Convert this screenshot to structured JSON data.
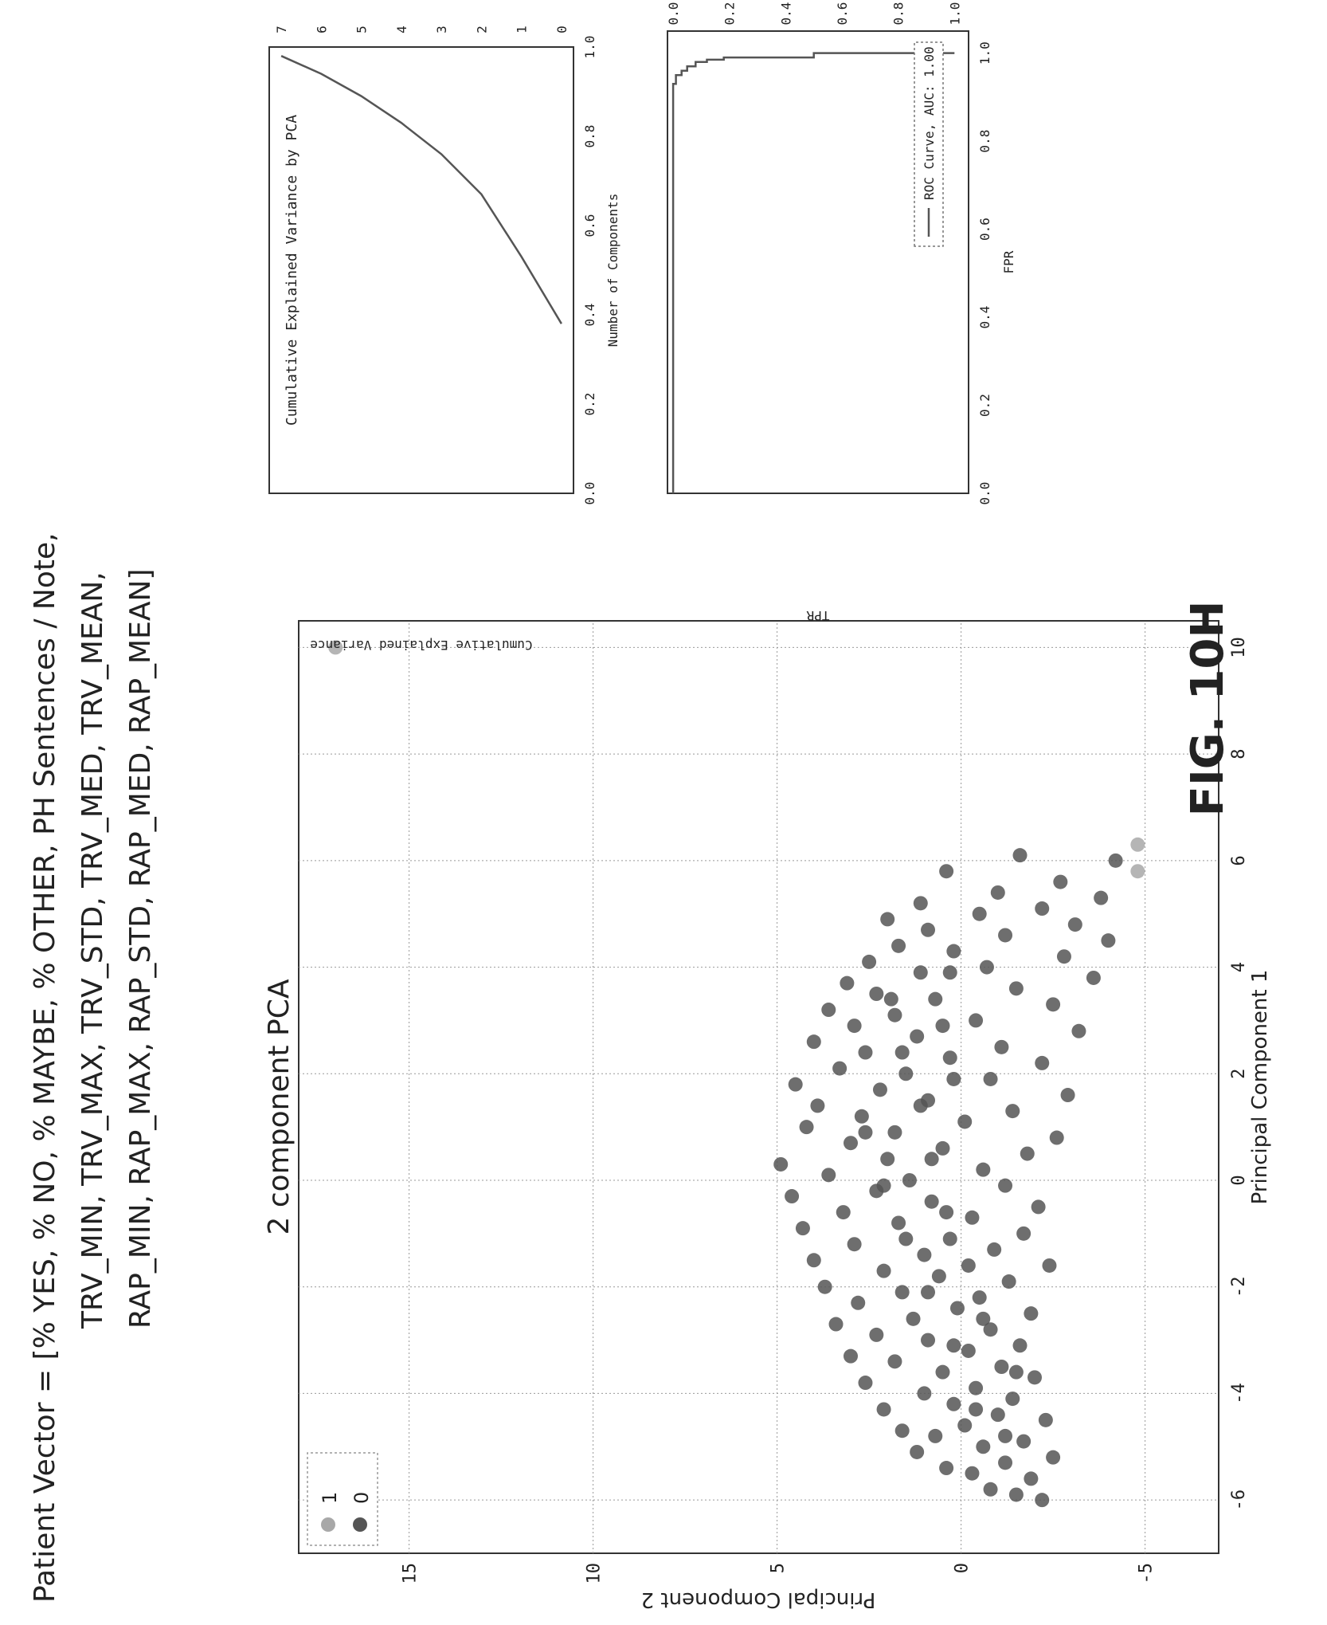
{
  "header": {
    "lines": [
      "Patient Vector = [% YES, % NO, % MAYBE, % OTHER, PH Sentences / Note,",
      "TRV_MIN, TRV_MAX, TRV_STD, TRV_MED, TRV_MEAN,",
      "RAP_MIN, RAP_MAX, RAP_STD, RAP_MED, RAP_MEAN]"
    ]
  },
  "figure_label": "FIG. 10H",
  "colors": {
    "class0": "#555555",
    "class1": "#a8a8a8",
    "line": "#555555",
    "grid": "#999999"
  },
  "chart_data": [
    {
      "type": "scatter",
      "title": "2 component PCA",
      "xlabel": "Principal Component 1",
      "ylabel": "Principal Component 2",
      "xlim": [
        -7,
        10.5
      ],
      "ylim": [
        -7,
        18
      ],
      "xticks": [
        -6,
        -4,
        -2,
        0,
        2,
        4,
        6,
        8,
        10
      ],
      "yticks": [
        -5,
        0,
        5,
        10,
        15
      ],
      "xtick_labels": [
        "-6",
        "-4",
        "-2",
        "0",
        "2",
        "4",
        "6",
        "8",
        "10"
      ],
      "ytick_labels": [
        "-5",
        "0",
        "5",
        "10",
        "15"
      ],
      "grid": true,
      "legend_position": "upper-left",
      "series": [
        {
          "name": "1",
          "color": "#a8a8a8",
          "points": [
            [
              10,
              17
            ],
            [
              6.3,
              -4.8
            ],
            [
              5.8,
              -4.8
            ]
          ]
        },
        {
          "name": "0",
          "color": "#555555",
          "points": [
            [
              -6,
              -2.2
            ],
            [
              -5.9,
              -1.5
            ],
            [
              -5.8,
              -0.8
            ],
            [
              -5.6,
              -1.9
            ],
            [
              -5.5,
              -0.3
            ],
            [
              -5.4,
              0.4
            ],
            [
              -5.3,
              -1.2
            ],
            [
              -5.2,
              -2.5
            ],
            [
              -5.1,
              1.2
            ],
            [
              -5,
              -0.6
            ],
            [
              -4.9,
              -1.7
            ],
            [
              -4.8,
              0.7
            ],
            [
              -4.7,
              1.6
            ],
            [
              -4.6,
              -0.1
            ],
            [
              -4.5,
              -2.3
            ],
            [
              -4.4,
              -1
            ],
            [
              -4.3,
              2.1
            ],
            [
              -4.2,
              0.2
            ],
            [
              -4.1,
              -1.4
            ],
            [
              -4,
              1
            ],
            [
              -3.9,
              -0.4
            ],
            [
              -3.8,
              2.6
            ],
            [
              -3.7,
              -2
            ],
            [
              -3.6,
              0.5
            ],
            [
              -3.5,
              -1.1
            ],
            [
              -3.4,
              1.8
            ],
            [
              -3.3,
              3
            ],
            [
              -3.2,
              -0.2
            ],
            [
              -3.1,
              -1.6
            ],
            [
              -3,
              0.9
            ],
            [
              -2.9,
              2.3
            ],
            [
              -2.8,
              -0.8
            ],
            [
              -2.7,
              3.4
            ],
            [
              -2.6,
              1.3
            ],
            [
              -2.5,
              -1.9
            ],
            [
              -2.4,
              0.1
            ],
            [
              -2.3,
              2.8
            ],
            [
              -2.2,
              -0.5
            ],
            [
              -2.1,
              1.6
            ],
            [
              -2,
              3.7
            ],
            [
              -1.9,
              -1.3
            ],
            [
              -1.8,
              0.6
            ],
            [
              -1.7,
              2.1
            ],
            [
              -1.6,
              -2.4
            ],
            [
              -1.5,
              4
            ],
            [
              -1.4,
              1
            ],
            [
              -1.3,
              -0.9
            ],
            [
              -1.2,
              2.9
            ],
            [
              -1.1,
              0.3
            ],
            [
              -1,
              -1.7
            ],
            [
              -0.9,
              4.3
            ],
            [
              -0.8,
              1.7
            ],
            [
              -0.7,
              -0.3
            ],
            [
              -0.6,
              3.2
            ],
            [
              -0.5,
              -2.1
            ],
            [
              -0.4,
              0.8
            ],
            [
              -0.3,
              4.6
            ],
            [
              -0.2,
              2.3
            ],
            [
              -0.1,
              -1.2
            ],
            [
              0,
              1.4
            ],
            [
              0.1,
              3.6
            ],
            [
              0.2,
              -0.6
            ],
            [
              0.3,
              4.9
            ],
            [
              0.4,
              2
            ],
            [
              0.5,
              -1.8
            ],
            [
              0.6,
              0.5
            ],
            [
              0.7,
              3
            ],
            [
              0.8,
              -2.6
            ],
            [
              0.9,
              1.8
            ],
            [
              1,
              4.2
            ],
            [
              1.1,
              -0.1
            ],
            [
              1.2,
              2.7
            ],
            [
              1.3,
              -1.4
            ],
            [
              1.4,
              3.9
            ],
            [
              1.5,
              0.9
            ],
            [
              1.6,
              -2.9
            ],
            [
              1.7,
              2.2
            ],
            [
              1.8,
              4.5
            ],
            [
              1.9,
              -0.8
            ],
            [
              2,
              1.5
            ],
            [
              2.1,
              3.3
            ],
            [
              2.2,
              -2.2
            ],
            [
              2.3,
              0.3
            ],
            [
              2.4,
              2.6
            ],
            [
              2.5,
              -1.1
            ],
            [
              2.6,
              4
            ],
            [
              2.7,
              1.2
            ],
            [
              2.8,
              -3.2
            ],
            [
              2.9,
              2.9
            ],
            [
              3,
              -0.4
            ],
            [
              3.1,
              1.8
            ],
            [
              3.2,
              3.6
            ],
            [
              3.3,
              -2.5
            ],
            [
              3.4,
              0.7
            ],
            [
              3.5,
              2.3
            ],
            [
              3.6,
              -1.5
            ],
            [
              3.7,
              3.1
            ],
            [
              3.8,
              -3.6
            ],
            [
              3.9,
              1.1
            ],
            [
              4,
              -0.7
            ],
            [
              4.1,
              2.5
            ],
            [
              4.2,
              -2.8
            ],
            [
              4.3,
              0.2
            ],
            [
              4.4,
              1.7
            ],
            [
              4.5,
              -4
            ],
            [
              4.6,
              -1.2
            ],
            [
              4.7,
              0.9
            ],
            [
              4.8,
              -3.1
            ],
            [
              4.9,
              2
            ],
            [
              5,
              -0.5
            ],
            [
              5.1,
              -2.2
            ],
            [
              5.2,
              1.1
            ],
            [
              5.3,
              -3.8
            ],
            [
              5.4,
              -1
            ],
            [
              5.6,
              -2.7
            ],
            [
              5.8,
              0.4
            ],
            [
              6,
              -4.2
            ],
            [
              6.1,
              -1.6
            ],
            [
              -4.8,
              -1.2
            ],
            [
              -4.3,
              -0.4
            ],
            [
              -3.6,
              -1.5
            ],
            [
              -3.1,
              0.2
            ],
            [
              -2.6,
              -0.6
            ],
            [
              -2.1,
              0.9
            ],
            [
              -1.6,
              -0.2
            ],
            [
              -1.1,
              1.5
            ],
            [
              -0.6,
              0.4
            ],
            [
              -0.1,
              2.1
            ],
            [
              0.4,
              0.8
            ],
            [
              0.9,
              2.6
            ],
            [
              1.4,
              1.1
            ],
            [
              1.9,
              0.2
            ],
            [
              2.4,
              1.6
            ],
            [
              2.9,
              0.5
            ],
            [
              3.4,
              1.9
            ],
            [
              3.9,
              0.3
            ]
          ]
        }
      ]
    },
    {
      "type": "line",
      "title": "Cumulative Explained Variance by PCA",
      "xlabel": "Number of Components",
      "ylabel": "Cumulative Explained Variance",
      "xlim": [
        -0.3,
        7.3
      ],
      "ylim": [
        0,
        1.0
      ],
      "xticks": [
        0,
        1,
        2,
        3,
        4,
        5,
        6,
        7
      ],
      "yticks": [
        0,
        0.2,
        0.4,
        0.6,
        0.8,
        1.0
      ],
      "xtick_labels": [
        "0",
        "1",
        "2",
        "3",
        "4",
        "5",
        "6",
        "7"
      ],
      "ytick_labels": [
        "0.0",
        "0.2",
        "0.4",
        "0.6",
        "0.8",
        "1.0"
      ],
      "grid": false,
      "series": [
        {
          "x": [
            0,
            1,
            2,
            3,
            4,
            5,
            6,
            7
          ],
          "y": [
            0.38,
            0.53,
            0.67,
            0.76,
            0.83,
            0.89,
            0.94,
            0.98
          ]
        }
      ]
    },
    {
      "type": "line",
      "xlabel": "FPR",
      "ylabel": "TPR",
      "xlim": [
        -0.02,
        1.05
      ],
      "ylim": [
        0,
        1.05
      ],
      "xticks": [
        0,
        0.2,
        0.4,
        0.6,
        0.8,
        1.0
      ],
      "yticks": [
        0,
        0.2,
        0.4,
        0.6,
        0.8,
        1.0
      ],
      "xtick_labels": [
        "0.0",
        "0.2",
        "0.4",
        "0.6",
        "0.8",
        "1.0"
      ],
      "ytick_labels": [
        "0.0",
        "0.2",
        "0.4",
        "0.6",
        "0.8",
        "1.0"
      ],
      "grid": false,
      "legend_position": "lower-right",
      "series": [
        {
          "name": "ROC Curve, AUC: 1.00",
          "x": [
            0,
            0,
            0.01,
            0.01,
            0.03,
            0.03,
            0.05,
            0.05,
            0.08,
            0.08,
            0.12,
            0.12,
            0.18,
            0.18,
            0.5,
            0.5,
            1.0
          ],
          "y": [
            0,
            0.93,
            0.93,
            0.95,
            0.95,
            0.96,
            0.96,
            0.97,
            0.97,
            0.98,
            0.98,
            0.985,
            0.985,
            0.99,
            0.99,
            1.0,
            1.0
          ]
        }
      ]
    }
  ]
}
